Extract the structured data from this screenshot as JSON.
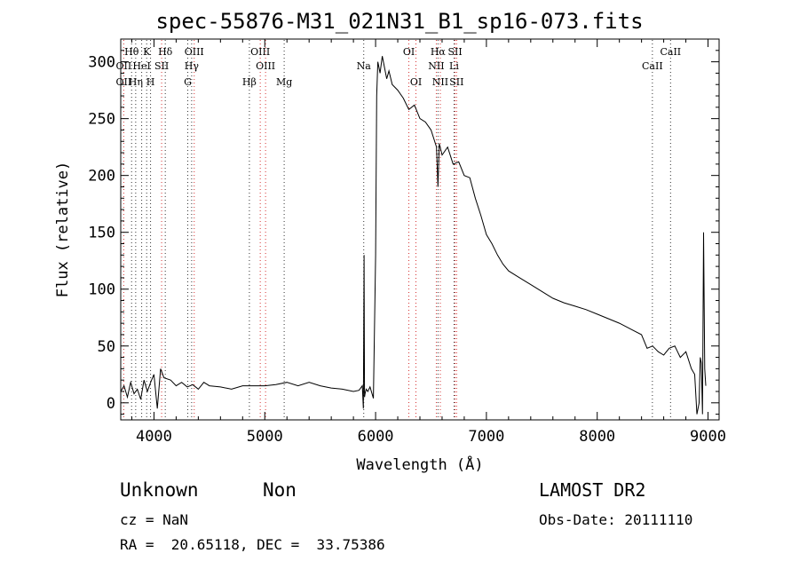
{
  "title": "spec-55876-M31_021N31_B1_sp16-073.fits",
  "info": {
    "class": "Unknown",
    "subclass": "Non",
    "survey": "LAMOST DR2",
    "cz": "cz = NaN",
    "obs_date": "Obs-Date: 20111110",
    "radec": "RA =  20.65118, DEC =  33.75386"
  },
  "colors": {
    "line": "#000000",
    "emission_marker": "#cc0000",
    "absorption_marker": "#000000"
  },
  "chart_data": {
    "type": "line",
    "title": "spec-55876-M31_021N31_B1_sp16-073.fits",
    "xlabel": "Wavelength (Å)",
    "ylabel": "Flux (relative)",
    "xlim": [
      3700,
      9100
    ],
    "ylim": [
      -15,
      320
    ],
    "x_ticks": [
      4000,
      5000,
      6000,
      7000,
      8000,
      9000
    ],
    "y_ticks": [
      0,
      50,
      100,
      150,
      200,
      250,
      300
    ],
    "grid": false,
    "series": [
      {
        "x": [
          3700,
          3730,
          3760,
          3790,
          3820,
          3850,
          3880,
          3910,
          3940,
          3970,
          4000,
          4030,
          4060,
          4090,
          4150,
          4200,
          4250,
          4300,
          4350,
          4400,
          4450,
          4500,
          4600,
          4700,
          4800,
          4900,
          5000,
          5100,
          5200,
          5300,
          5400,
          5500,
          5600,
          5700,
          5800,
          5850,
          5880,
          5890,
          5896,
          5900,
          5905,
          5915,
          5930,
          5950,
          5980,
          6000,
          6010,
          6020,
          6040,
          6060,
          6080,
          6100,
          6120,
          6150,
          6200,
          6250,
          6300,
          6350,
          6400,
          6450,
          6500,
          6550,
          6563,
          6575,
          6600,
          6650,
          6700,
          6750,
          6800,
          6850,
          6900,
          6950,
          7000,
          7050,
          7100,
          7150,
          7200,
          7300,
          7400,
          7500,
          7600,
          7700,
          7800,
          7900,
          8000,
          8100,
          8200,
          8300,
          8400,
          8450,
          8500,
          8550,
          8600,
          8650,
          8700,
          8750,
          8800,
          8850,
          8880,
          8900,
          8920,
          8930,
          8940,
          8950,
          8960,
          8970,
          8980
        ],
        "y": [
          10,
          15,
          5,
          18,
          8,
          12,
          3,
          20,
          10,
          18,
          25,
          -5,
          30,
          22,
          20,
          15,
          18,
          14,
          16,
          12,
          18,
          15,
          14,
          12,
          15,
          15,
          15,
          16,
          18,
          15,
          18,
          15,
          13,
          12,
          10,
          11,
          15,
          -5,
          130,
          5,
          8,
          12,
          10,
          14,
          4,
          130,
          270,
          300,
          290,
          305,
          295,
          285,
          292,
          280,
          275,
          268,
          258,
          262,
          250,
          247,
          240,
          225,
          190,
          228,
          218,
          225,
          210,
          212,
          200,
          198,
          180,
          165,
          148,
          140,
          130,
          122,
          116,
          110,
          104,
          98,
          92,
          88,
          85,
          82,
          78,
          74,
          70,
          65,
          60,
          48,
          50,
          45,
          42,
          48,
          50,
          40,
          45,
          30,
          25,
          -10,
          0,
          40,
          35,
          -10,
          150,
          30,
          15
        ]
      }
    ],
    "line_markers": [
      {
        "label": "Hθ",
        "wave": 3798,
        "row": 0,
        "kind": "absorption"
      },
      {
        "label": "OII",
        "wave": 3727,
        "row": 1,
        "kind": "emission"
      },
      {
        "label": "OII",
        "wave": 3727,
        "row": 2,
        "kind": "emission"
      },
      {
        "label": "HeI",
        "wave": 3889,
        "row": 1,
        "kind": "absorption"
      },
      {
        "label": "Hη",
        "wave": 3835,
        "row": 2,
        "kind": "absorption"
      },
      {
        "label": "K",
        "wave": 3934,
        "row": 0,
        "kind": "absorption"
      },
      {
        "label": "H",
        "wave": 3969,
        "row": 2,
        "kind": "absorption"
      },
      {
        "label": "SII",
        "wave": 4069,
        "row": 1,
        "kind": "emission"
      },
      {
        "label": "Hδ",
        "wave": 4102,
        "row": 0,
        "kind": "absorption"
      },
      {
        "label": "OIII",
        "wave": 4363,
        "row": 0,
        "kind": "emission"
      },
      {
        "label": "Hγ",
        "wave": 4340,
        "row": 1,
        "kind": "absorption"
      },
      {
        "label": "G",
        "wave": 4305,
        "row": 2,
        "kind": "absorption"
      },
      {
        "label": "OIII",
        "wave": 4959,
        "row": 0,
        "kind": "emission"
      },
      {
        "label": "OIII",
        "wave": 5007,
        "row": 1,
        "kind": "emission"
      },
      {
        "label": "Hβ",
        "wave": 4861,
        "row": 2,
        "kind": "absorption"
      },
      {
        "label": "Mg",
        "wave": 5175,
        "row": 2,
        "kind": "absorption"
      },
      {
        "label": "Na",
        "wave": 5893,
        "row": 1,
        "kind": "absorption"
      },
      {
        "label": "OI",
        "wave": 6300,
        "row": 0,
        "kind": "emission"
      },
      {
        "label": "OI",
        "wave": 6364,
        "row": 2,
        "kind": "emission"
      },
      {
        "label": "Hα",
        "wave": 6563,
        "row": 0,
        "kind": "absorption"
      },
      {
        "label": "SII",
        "wave": 6717,
        "row": 0,
        "kind": "emission"
      },
      {
        "label": "NII",
        "wave": 6548,
        "row": 1,
        "kind": "emission"
      },
      {
        "label": "Li",
        "wave": 6708,
        "row": 1,
        "kind": "absorption"
      },
      {
        "label": "NII",
        "wave": 6584,
        "row": 2,
        "kind": "emission"
      },
      {
        "label": "SII",
        "wave": 6731,
        "row": 2,
        "kind": "emission"
      },
      {
        "label": "CaII",
        "wave": 8662,
        "row": 0,
        "kind": "absorption"
      },
      {
        "label": "CaII",
        "wave": 8498,
        "row": 1,
        "kind": "absorption"
      }
    ]
  }
}
